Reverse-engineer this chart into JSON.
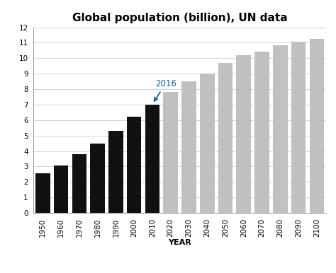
{
  "title": "Global population (billion), UN data",
  "xlabel": "YEAR",
  "ylabel": "",
  "categories": [
    "1950",
    "1960",
    "1970",
    "1980",
    "1990",
    "2000",
    "2010",
    "2020",
    "2030",
    "2040",
    "2050",
    "2060",
    "2070",
    "2080",
    "2090",
    "2100"
  ],
  "values": [
    2.55,
    3.05,
    3.8,
    4.5,
    5.3,
    6.2,
    7.0,
    7.8,
    8.5,
    9.0,
    9.7,
    10.2,
    10.45,
    10.85,
    11.05,
    11.25
  ],
  "bar_colors": [
    "#111111",
    "#111111",
    "#111111",
    "#111111",
    "#111111",
    "#111111",
    "#111111",
    "#c0c0c0",
    "#c0c0c0",
    "#c0c0c0",
    "#c0c0c0",
    "#c0c0c0",
    "#c0c0c0",
    "#c0c0c0",
    "#c0c0c0",
    "#c0c0c0"
  ],
  "annotation_text": "2016",
  "annotation_bar_idx": 6,
  "ylim": [
    0,
    12
  ],
  "yticks": [
    0,
    1,
    2,
    3,
    4,
    5,
    6,
    7,
    8,
    9,
    10,
    11,
    12
  ],
  "background_color": "#ffffff",
  "title_fontsize": 11,
  "axis_fontsize": 8,
  "tick_fontsize": 7.5
}
